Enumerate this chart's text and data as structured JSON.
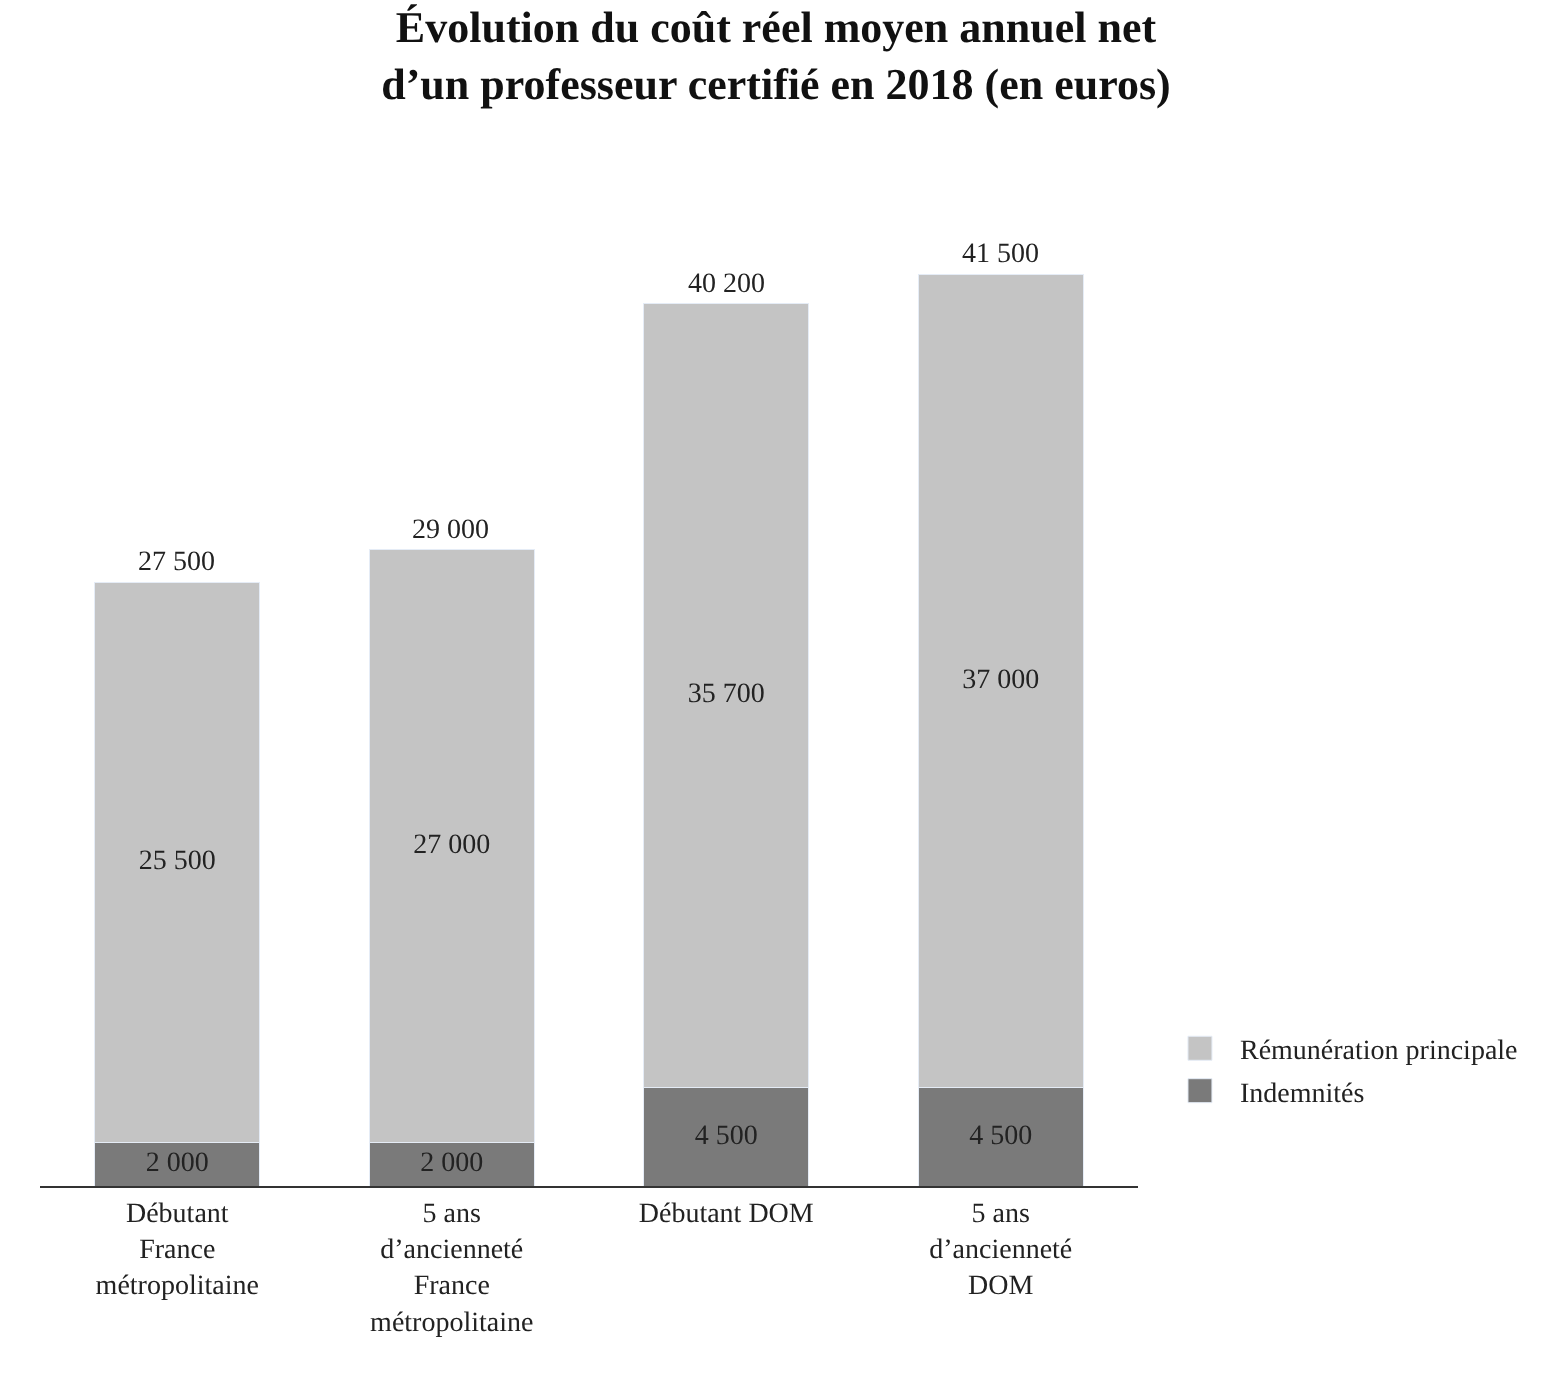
{
  "chart_data": {
    "type": "bar",
    "stacked": true,
    "title": "Évolution du coût réel moyen annuel net\nd’un professeur certifié en 2018 (en euros)",
    "categories": [
      "Débutant France métropolitaine",
      "5 ans d’ancienneté France métropolitaine",
      "Débutant DOM",
      "5 ans d’ancienneté DOM"
    ],
    "series": [
      {
        "name": "Indemnités",
        "color": "#7a7a7a",
        "values": [
          2000,
          2000,
          4500,
          4500
        ],
        "value_labels": [
          "2 000",
          "2 000",
          "4 500",
          "4 500"
        ]
      },
      {
        "name": "Rémunération principale",
        "color": "#c4c4c4",
        "values": [
          25500,
          27000,
          35700,
          37000
        ],
        "value_labels": [
          "25 500",
          "27 000",
          "35 700",
          "37 000"
        ]
      }
    ],
    "totals": [
      "27 500",
      "29 000",
      "40 200",
      "41 500"
    ],
    "legend": "right"
  }
}
